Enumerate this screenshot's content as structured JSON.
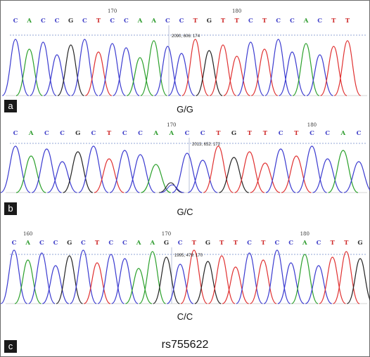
{
  "snp_id": "rs755622",
  "trace_colors": {
    "A": "#2aa02a",
    "C": "#3a3ad0",
    "G": "#222222",
    "T": "#e03030"
  },
  "panels": [
    {
      "letter": "a",
      "genotype": "G/G",
      "bases": [
        "C",
        "A",
        "C",
        "C",
        "G",
        "C",
        "T",
        "C",
        "C",
        "A",
        "A",
        "C",
        "C",
        "T",
        "G",
        "T",
        "T",
        "C",
        "T",
        "C",
        "C",
        "A",
        "C",
        "T",
        "T"
      ],
      "positions": [
        {
          "label": "170"
        },
        {
          "label": "180"
        }
      ],
      "peak_info": "2090, 606: 174"
    },
    {
      "letter": "b",
      "genotype": "G/C",
      "bases": [
        "C",
        "A",
        "C",
        "C",
        "G",
        "C",
        "T",
        "C",
        "C",
        "A",
        "A",
        "C",
        "C",
        "T",
        "G",
        "T",
        "T",
        "C",
        "T",
        "C",
        "C",
        "A",
        "C"
      ],
      "positions": [
        {
          "label": "170"
        },
        {
          "label": "180"
        }
      ],
      "peak_info": "2013, 652: 172"
    },
    {
      "letter": "c",
      "genotype": "C/C",
      "bases": [
        "C",
        "A",
        "C",
        "C",
        "G",
        "C",
        "T",
        "C",
        "C",
        "A",
        "A",
        "G",
        "C",
        "T",
        "G",
        "T",
        "T",
        "C",
        "T",
        "C",
        "C",
        "A",
        "C",
        "T",
        "T",
        "G"
      ],
      "positions": [
        {
          "label": "160"
        },
        {
          "label": "170"
        },
        {
          "label": "180"
        }
      ],
      "peak_info": "1995, 479: 170"
    }
  ]
}
